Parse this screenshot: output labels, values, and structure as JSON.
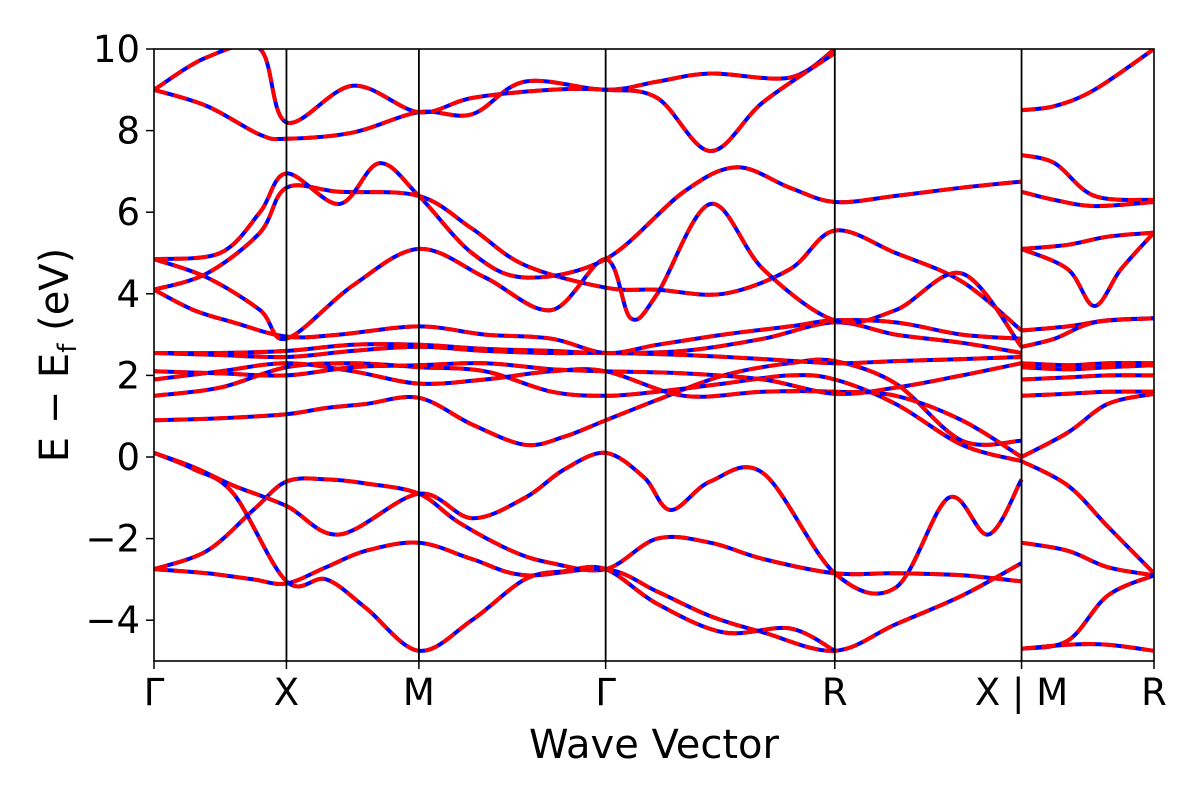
{
  "chart_data": {
    "type": "line",
    "title": "",
    "xlabel": "Wave Vector",
    "ylabel": {
      "main": "E − E",
      "sub": "f",
      "unit": " (eV)"
    },
    "ylim": [
      -5,
      10
    ],
    "yticks": [
      {
        "value": -4,
        "label": "−4"
      },
      {
        "value": -2,
        "label": "−2"
      },
      {
        "value": 0,
        "label": "0"
      },
      {
        "value": 2,
        "label": "2"
      },
      {
        "value": 4,
        "label": "4"
      },
      {
        "value": 6,
        "label": "6"
      },
      {
        "value": 8,
        "label": "8"
      },
      {
        "value": 10,
        "label": "10"
      }
    ],
    "xlim": [
      0,
      7.55
    ],
    "kpoints": [
      {
        "x": 0,
        "label": "Γ"
      },
      {
        "x": 1.0,
        "label": "X"
      },
      {
        "x": 2.0,
        "label": "M"
      },
      {
        "x": 3.41,
        "label": "Γ"
      },
      {
        "x": 5.14,
        "label": "R"
      },
      {
        "x": 6.55,
        "label": "X | M"
      },
      {
        "x": 7.55,
        "label": "R"
      }
    ],
    "grid": false,
    "series_colors": {
      "reference": "#0000ff",
      "overlay": "#ff0000"
    },
    "bands": [
      [
        [
          0,
          -2.75
        ],
        [
          0.4,
          -2.3
        ],
        [
          0.75,
          -1.3
        ],
        [
          1.0,
          -0.6
        ],
        [
          1.3,
          -0.55
        ],
        [
          1.6,
          -0.65
        ],
        [
          2.0,
          -0.9
        ],
        [
          2.3,
          -1.6
        ],
        [
          2.7,
          -2.3
        ],
        [
          3.0,
          -2.6
        ],
        [
          3.41,
          -2.75
        ],
        [
          3.8,
          -2.0
        ],
        [
          4.2,
          -2.1
        ],
        [
          4.6,
          -2.5
        ],
        [
          5.14,
          -2.85
        ],
        [
          5.6,
          -2.85
        ],
        [
          6.1,
          -2.9
        ],
        [
          6.55,
          -3.05
        ]
      ],
      [
        [
          0,
          -2.75
        ],
        [
          0.4,
          -2.85
        ],
        [
          0.75,
          -3.0
        ],
        [
          1.0,
          -3.1
        ],
        [
          1.3,
          -2.7
        ],
        [
          1.6,
          -2.3
        ],
        [
          2.0,
          -2.1
        ],
        [
          2.4,
          -2.5
        ],
        [
          2.8,
          -2.9
        ],
        [
          3.41,
          -2.75
        ],
        [
          3.8,
          -3.3
        ],
        [
          4.2,
          -3.9
        ],
        [
          4.6,
          -4.3
        ],
        [
          5.14,
          -4.75
        ],
        [
          5.6,
          -4.1
        ],
        [
          6.1,
          -3.4
        ],
        [
          6.55,
          -2.6
        ]
      ],
      [
        [
          0,
          0.1
        ],
        [
          0.3,
          -0.3
        ],
        [
          0.6,
          -0.9
        ],
        [
          1.0,
          -3.05
        ],
        [
          1.3,
          -3.0
        ],
        [
          1.6,
          -3.7
        ],
        [
          2.0,
          -4.75
        ],
        [
          2.4,
          -4.0
        ],
        [
          2.8,
          -3.0
        ],
        [
          3.1,
          -2.8
        ],
        [
          3.41,
          -2.75
        ],
        [
          3.8,
          -3.6
        ],
        [
          4.3,
          -4.3
        ],
        [
          4.8,
          -4.2
        ],
        [
          5.14,
          -4.75
        ]
      ],
      [
        [
          0,
          0.1
        ],
        [
          0.3,
          -0.25
        ],
        [
          0.6,
          -0.7
        ],
        [
          1.0,
          -1.2
        ],
        [
          1.4,
          -1.9
        ],
        [
          2.0,
          -0.9
        ],
        [
          2.4,
          -1.5
        ],
        [
          2.8,
          -1.0
        ],
        [
          3.1,
          -0.3
        ],
        [
          3.41,
          0.1
        ],
        [
          3.7,
          -0.5
        ],
        [
          3.9,
          -1.3
        ],
        [
          4.2,
          -0.6
        ],
        [
          4.6,
          -0.4
        ],
        [
          5.14,
          -2.85
        ],
        [
          5.6,
          -3.2
        ],
        [
          6.0,
          -1.0
        ],
        [
          6.3,
          -1.9
        ],
        [
          6.55,
          -0.55
        ]
      ],
      [
        [
          0,
          0.9
        ],
        [
          0.5,
          0.95
        ],
        [
          1.0,
          1.05
        ],
        [
          1.3,
          1.2
        ],
        [
          1.6,
          1.3
        ],
        [
          2.0,
          1.45
        ],
        [
          2.4,
          0.8
        ],
        [
          2.8,
          0.3
        ],
        [
          3.1,
          0.5
        ],
        [
          3.41,
          0.9
        ],
        [
          3.8,
          1.4
        ],
        [
          4.3,
          2.0
        ],
        [
          4.8,
          2.3
        ],
        [
          5.14,
          2.35
        ],
        [
          5.6,
          1.8
        ],
        [
          6.1,
          0.4
        ],
        [
          6.55,
          0.4
        ]
      ],
      [
        [
          0,
          1.5
        ],
        [
          0.5,
          1.7
        ],
        [
          1.0,
          2.2
        ],
        [
          1.5,
          2.3
        ],
        [
          2.0,
          2.2
        ],
        [
          2.5,
          2.1
        ],
        [
          3.0,
          1.6
        ],
        [
          3.41,
          1.5
        ],
        [
          3.8,
          1.6
        ],
        [
          4.3,
          1.8
        ],
        [
          4.8,
          2.0
        ],
        [
          5.14,
          1.9
        ],
        [
          5.6,
          1.3
        ],
        [
          6.1,
          0.3
        ],
        [
          6.55,
          -0.1
        ]
      ],
      [
        [
          0,
          1.9
        ],
        [
          0.5,
          2.1
        ],
        [
          1.0,
          2.3
        ],
        [
          1.5,
          2.1
        ],
        [
          2.0,
          1.8
        ],
        [
          2.5,
          1.9
        ],
        [
          3.0,
          2.1
        ],
        [
          3.41,
          2.1
        ],
        [
          4.0,
          1.5
        ],
        [
          4.6,
          1.6
        ],
        [
          5.14,
          1.6
        ],
        [
          5.6,
          1.5
        ],
        [
          6.1,
          0.9
        ],
        [
          6.55,
          0.0
        ]
      ],
      [
        [
          0,
          2.1
        ],
        [
          0.5,
          2.05
        ],
        [
          1.0,
          2.0
        ],
        [
          1.5,
          2.2
        ],
        [
          2.0,
          2.25
        ],
        [
          2.5,
          2.3
        ],
        [
          3.0,
          2.15
        ],
        [
          3.41,
          2.1
        ],
        [
          4.0,
          2.05
        ],
        [
          4.6,
          1.9
        ],
        [
          5.14,
          1.55
        ],
        [
          5.6,
          1.7
        ],
        [
          6.1,
          2.0
        ],
        [
          6.55,
          2.3
        ]
      ],
      [
        [
          0,
          2.55
        ],
        [
          0.5,
          2.5
        ],
        [
          1.0,
          2.45
        ],
        [
          1.5,
          2.6
        ],
        [
          2.0,
          2.7
        ],
        [
          2.5,
          2.6
        ],
        [
          3.0,
          2.55
        ],
        [
          3.41,
          2.55
        ],
        [
          4.0,
          2.5
        ],
        [
          4.6,
          2.4
        ],
        [
          5.14,
          2.3
        ],
        [
          5.6,
          2.35
        ],
        [
          6.1,
          2.4
        ],
        [
          6.55,
          2.45
        ]
      ],
      [
        [
          0,
          2.55
        ],
        [
          0.5,
          2.55
        ],
        [
          1.0,
          2.6
        ],
        [
          1.5,
          2.75
        ],
        [
          2.0,
          2.75
        ],
        [
          2.5,
          2.65
        ],
        [
          3.0,
          2.6
        ],
        [
          3.41,
          2.55
        ],
        [
          4.0,
          2.6
        ],
        [
          4.6,
          2.9
        ],
        [
          5.14,
          3.3
        ],
        [
          5.6,
          3.0
        ],
        [
          6.1,
          2.8
        ],
        [
          6.55,
          2.55
        ]
      ],
      [
        [
          0,
          4.1
        ],
        [
          0.3,
          3.6
        ],
        [
          0.6,
          3.3
        ],
        [
          1.0,
          2.95
        ],
        [
          1.4,
          3.0
        ],
        [
          2.0,
          3.2
        ],
        [
          2.5,
          3.0
        ],
        [
          3.0,
          2.9
        ],
        [
          3.41,
          2.55
        ],
        [
          3.8,
          2.75
        ],
        [
          4.3,
          3.0
        ],
        [
          4.8,
          3.2
        ],
        [
          5.14,
          3.35
        ],
        [
          5.6,
          3.3
        ],
        [
          6.1,
          3.0
        ],
        [
          6.55,
          2.9
        ]
      ],
      [
        [
          0,
          4.1
        ],
        [
          0.4,
          4.5
        ],
        [
          0.8,
          5.5
        ],
        [
          1.0,
          6.6
        ],
        [
          1.4,
          6.5
        ],
        [
          2.0,
          6.4
        ],
        [
          2.4,
          5.6
        ],
        [
          2.8,
          4.7
        ],
        [
          3.41,
          4.15
        ],
        [
          3.8,
          4.1
        ],
        [
          4.3,
          4.0
        ],
        [
          4.8,
          4.6
        ],
        [
          5.14,
          5.55
        ],
        [
          5.6,
          5.0
        ],
        [
          6.1,
          4.3
        ],
        [
          6.55,
          3.1
        ]
      ],
      [
        [
          0,
          4.85
        ],
        [
          0.4,
          4.4
        ],
        [
          0.8,
          3.6
        ],
        [
          1.0,
          2.9
        ],
        [
          1.5,
          4.2
        ],
        [
          2.0,
          5.1
        ],
        [
          2.5,
          4.4
        ],
        [
          3.0,
          3.6
        ],
        [
          3.41,
          4.85
        ],
        [
          3.6,
          3.4
        ],
        [
          3.8,
          4.0
        ],
        [
          4.2,
          6.2
        ],
        [
          4.6,
          4.6
        ],
        [
          5.14,
          3.35
        ],
        [
          5.6,
          3.6
        ],
        [
          6.1,
          4.5
        ],
        [
          6.55,
          2.7
        ]
      ],
      [
        [
          0,
          4.85
        ],
        [
          0.5,
          5.0
        ],
        [
          0.8,
          6.0
        ],
        [
          1.0,
          6.95
        ],
        [
          1.4,
          6.2
        ],
        [
          1.7,
          7.2
        ],
        [
          2.0,
          6.4
        ],
        [
          2.4,
          5.0
        ],
        [
          2.8,
          4.4
        ],
        [
          3.41,
          4.85
        ],
        [
          4.0,
          6.5
        ],
        [
          4.4,
          7.1
        ],
        [
          4.8,
          6.6
        ],
        [
          5.14,
          6.25
        ],
        [
          5.6,
          6.4
        ],
        [
          6.1,
          6.6
        ],
        [
          6.55,
          6.75
        ]
      ],
      [
        [
          0,
          9.0
        ],
        [
          0.4,
          8.6
        ],
        [
          0.8,
          7.9
        ],
        [
          1.0,
          7.8
        ],
        [
          1.5,
          7.95
        ],
        [
          2.0,
          8.45
        ],
        [
          2.4,
          8.4
        ],
        [
          2.8,
          9.2
        ],
        [
          3.41,
          9.0
        ],
        [
          3.8,
          9.2
        ],
        [
          4.2,
          9.4
        ],
        [
          4.8,
          9.3
        ],
        [
          5.14,
          10.0
        ]
      ],
      [
        [
          0,
          9.0
        ],
        [
          0.4,
          9.8
        ],
        [
          0.8,
          10.0
        ],
        [
          1.0,
          8.2
        ],
        [
          1.5,
          9.1
        ],
        [
          2.0,
          8.45
        ],
        [
          2.4,
          8.8
        ],
        [
          3.0,
          9.0
        ],
        [
          3.41,
          9.0
        ],
        [
          3.8,
          8.8
        ],
        [
          4.2,
          7.5
        ],
        [
          4.6,
          8.7
        ],
        [
          5.14,
          9.9
        ]
      ],
      [
        [
          6.55,
          8.5
        ],
        [
          6.8,
          8.6
        ],
        [
          7.1,
          9.0
        ],
        [
          7.55,
          10.0
        ]
      ],
      [
        [
          6.55,
          7.4
        ],
        [
          6.8,
          7.2
        ],
        [
          7.1,
          6.4
        ],
        [
          7.55,
          6.3
        ]
      ],
      [
        [
          6.55,
          6.5
        ],
        [
          6.8,
          6.3
        ],
        [
          7.1,
          6.15
        ],
        [
          7.55,
          6.25
        ]
      ],
      [
        [
          6.55,
          5.1
        ],
        [
          6.9,
          5.2
        ],
        [
          7.2,
          5.4
        ],
        [
          7.55,
          5.5
        ]
      ],
      [
        [
          6.55,
          5.1
        ],
        [
          6.9,
          4.6
        ],
        [
          7.1,
          3.7
        ],
        [
          7.3,
          4.6
        ],
        [
          7.55,
          5.5
        ]
      ],
      [
        [
          6.55,
          3.1
        ],
        [
          6.9,
          3.2
        ],
        [
          7.2,
          3.35
        ],
        [
          7.55,
          3.4
        ]
      ],
      [
        [
          6.55,
          2.7
        ],
        [
          6.8,
          2.9
        ],
        [
          7.1,
          3.3
        ],
        [
          7.55,
          3.4
        ]
      ],
      [
        [
          6.55,
          2.3
        ],
        [
          6.9,
          2.25
        ],
        [
          7.2,
          2.3
        ],
        [
          7.55,
          2.3
        ]
      ],
      [
        [
          6.55,
          2.2
        ],
        [
          6.9,
          2.15
        ],
        [
          7.2,
          2.2
        ],
        [
          7.55,
          2.25
        ]
      ],
      [
        [
          6.55,
          1.9
        ],
        [
          6.9,
          1.95
        ],
        [
          7.2,
          2.0
        ],
        [
          7.55,
          2.0
        ]
      ],
      [
        [
          6.55,
          1.5
        ],
        [
          6.9,
          1.55
        ],
        [
          7.2,
          1.6
        ],
        [
          7.55,
          1.6
        ]
      ],
      [
        [
          6.55,
          0.0
        ],
        [
          6.9,
          0.6
        ],
        [
          7.2,
          1.3
        ],
        [
          7.55,
          1.55
        ]
      ],
      [
        [
          6.55,
          -0.1
        ],
        [
          6.9,
          -0.7
        ],
        [
          7.2,
          -1.7
        ],
        [
          7.55,
          -2.85
        ]
      ],
      [
        [
          6.55,
          -2.1
        ],
        [
          6.9,
          -2.3
        ],
        [
          7.2,
          -2.7
        ],
        [
          7.55,
          -2.9
        ]
      ],
      [
        [
          6.55,
          -4.7
        ],
        [
          6.9,
          -4.5
        ],
        [
          7.2,
          -3.4
        ],
        [
          7.55,
          -2.9
        ]
      ],
      [
        [
          6.55,
          -4.7
        ],
        [
          6.9,
          -4.6
        ],
        [
          7.2,
          -4.6
        ],
        [
          7.55,
          -4.75
        ]
      ]
    ]
  }
}
